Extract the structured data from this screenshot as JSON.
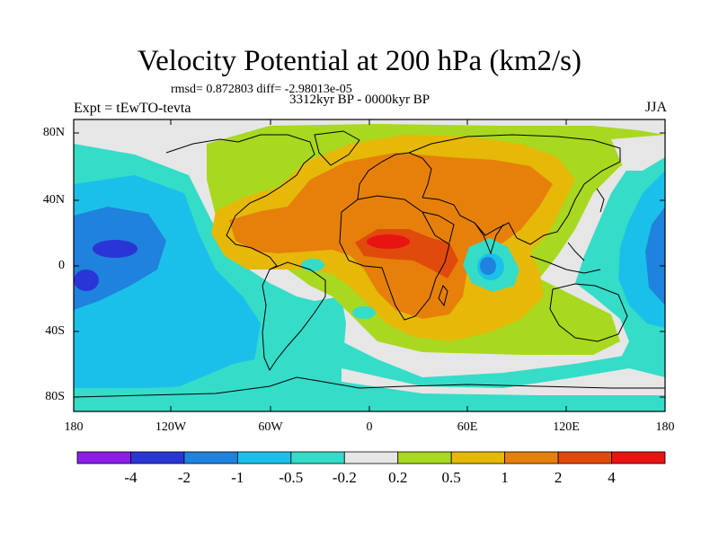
{
  "title": "Velocity Potential at 200 hPa (km2/s)",
  "stats": "rmsd= 0.872803 diff= -2.98013e-05",
  "period": "3312kyr BP - 0000kyr BP",
  "experiment": "Expt = tEwTO-tevta",
  "season": "JJA",
  "lat_labels": [
    "80N",
    "40N",
    "0",
    "40S",
    "80S"
  ],
  "lon_labels": [
    "180",
    "120W",
    "60W",
    "0",
    "60E",
    "120E",
    "180"
  ],
  "colorbar": {
    "labels": [
      "-4",
      "-2",
      "-1",
      "-0.5",
      "-0.2",
      "0.2",
      "0.5",
      "1",
      "2",
      "4"
    ],
    "colors": [
      "#8c1ee8",
      "#2a35d6",
      "#1f82dc",
      "#1bc0ea",
      "#35dcc8",
      "#e6e6e6",
      "#a8d820",
      "#e6b808",
      "#e6800a",
      "#e04a0c",
      "#e81414"
    ]
  },
  "regions": {
    "label_main_pos": "western Pacific / Asia-Africa",
    "dominant_pos_max": "2 to 4 over central Africa and the Arabian Sea",
    "dominant_neg_min": "-2 to -4 over central Pacific"
  }
}
